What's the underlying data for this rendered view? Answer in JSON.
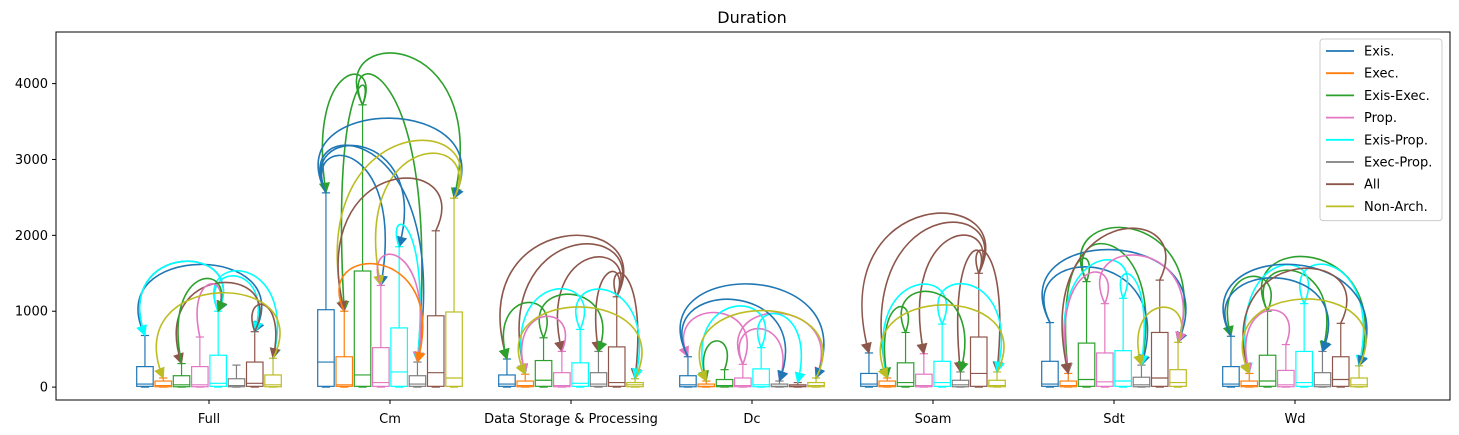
{
  "chart_data": {
    "type": "box",
    "title": "Duration",
    "xlabel": "",
    "ylabel": "",
    "ylim": [
      -170,
      4680
    ],
    "yticks": [
      0,
      1000,
      2000,
      3000,
      4000
    ],
    "grid": false,
    "legend_position": "top-right",
    "categories": [
      "Full",
      "Cm",
      "Data Storage & Processing",
      "Dc",
      "Soam",
      "Sdt",
      "Wd"
    ],
    "series": [
      {
        "name": "Exis.",
        "color": "#1f77b4",
        "boxes": [
          {
            "q1": 10,
            "median": 40,
            "q3": 270,
            "whisker_high": 680
          },
          {
            "q1": 10,
            "median": 330,
            "q3": 1020,
            "whisker_high": 2560
          },
          {
            "q1": 10,
            "median": 40,
            "q3": 160,
            "whisker_high": 370
          },
          {
            "q1": 5,
            "median": 30,
            "q3": 150,
            "whisker_high": 400
          },
          {
            "q1": 10,
            "median": 40,
            "q3": 180,
            "whisker_high": 450
          },
          {
            "q1": 10,
            "median": 40,
            "q3": 340,
            "whisker_high": 850
          },
          {
            "q1": 10,
            "median": 40,
            "q3": 270,
            "whisker_high": 670
          }
        ]
      },
      {
        "name": "Exec.",
        "color": "#ff7f0e",
        "boxes": [
          {
            "q1": 5,
            "median": 20,
            "q3": 80,
            "whisker_high": 120
          },
          {
            "q1": 10,
            "median": 30,
            "q3": 400,
            "whisker_high": 1000
          },
          {
            "q1": 5,
            "median": 20,
            "q3": 80,
            "whisker_high": 170
          },
          {
            "q1": 5,
            "median": 10,
            "q3": 40,
            "whisker_high": 80
          },
          {
            "q1": 5,
            "median": 20,
            "q3": 80,
            "whisker_high": 120
          },
          {
            "q1": 5,
            "median": 20,
            "q3": 80,
            "whisker_high": 180
          },
          {
            "q1": 5,
            "median": 20,
            "q3": 80,
            "whisker_high": 180
          }
        ]
      },
      {
        "name": "Exis-Exec.",
        "color": "#2ca02c",
        "boxes": [
          {
            "q1": 5,
            "median": 30,
            "q3": 150,
            "whisker_high": 310
          },
          {
            "q1": 10,
            "median": 160,
            "q3": 1530,
            "whisker_high": 3720
          },
          {
            "q1": 10,
            "median": 90,
            "q3": 350,
            "whisker_high": 650
          },
          {
            "q1": 5,
            "median": 20,
            "q3": 100,
            "whisker_high": 230
          },
          {
            "q1": 10,
            "median": 60,
            "q3": 320,
            "whisker_high": 720
          },
          {
            "q1": 10,
            "median": 100,
            "q3": 580,
            "whisker_high": 1390
          },
          {
            "q1": 10,
            "median": 80,
            "q3": 420,
            "whisker_high": 1000
          }
        ]
      },
      {
        "name": "Prop.",
        "color": "#e377c2",
        "boxes": [
          {
            "q1": 5,
            "median": 30,
            "q3": 270,
            "whisker_high": 660
          },
          {
            "q1": 10,
            "median": 60,
            "q3": 520,
            "whisker_high": 1340
          },
          {
            "q1": 5,
            "median": 20,
            "q3": 190,
            "whisker_high": 470
          },
          {
            "q1": 5,
            "median": 20,
            "q3": 120,
            "whisker_high": 300
          },
          {
            "q1": 5,
            "median": 20,
            "q3": 170,
            "whisker_high": 440
          },
          {
            "q1": 10,
            "median": 70,
            "q3": 450,
            "whisker_high": 1100
          },
          {
            "q1": 5,
            "median": 30,
            "q3": 220,
            "whisker_high": 560
          }
        ]
      },
      {
        "name": "Exis-Prop.",
        "color": "#00ffff",
        "boxes": [
          {
            "q1": 10,
            "median": 50,
            "q3": 420,
            "whisker_high": 1000
          },
          {
            "q1": 10,
            "median": 200,
            "q3": 780,
            "whisker_high": 1850
          },
          {
            "q1": 10,
            "median": 50,
            "q3": 320,
            "whisker_high": 760
          },
          {
            "q1": 5,
            "median": 30,
            "q3": 240,
            "whisker_high": 520
          },
          {
            "q1": 10,
            "median": 60,
            "q3": 340,
            "whisker_high": 830
          },
          {
            "q1": 10,
            "median": 80,
            "q3": 480,
            "whisker_high": 1170
          },
          {
            "q1": 10,
            "median": 60,
            "q3": 470,
            "whisker_high": 1100
          }
        ]
      },
      {
        "name": "Exec-Prop.",
        "color": "#7f7f7f",
        "boxes": [
          {
            "q1": 5,
            "median": 20,
            "q3": 110,
            "whisker_high": 290
          },
          {
            "q1": 10,
            "median": 40,
            "q3": 150,
            "whisker_high": 330
          },
          {
            "q1": 10,
            "median": 40,
            "q3": 190,
            "whisker_high": 470
          },
          {
            "q1": 5,
            "median": 10,
            "q3": 40,
            "whisker_high": 80
          },
          {
            "q1": 5,
            "median": 30,
            "q3": 90,
            "whisker_high": 200
          },
          {
            "q1": 5,
            "median": 30,
            "q3": 130,
            "whisker_high": 290
          },
          {
            "q1": 5,
            "median": 30,
            "q3": 190,
            "whisker_high": 470
          }
        ]
      },
      {
        "name": "All",
        "color": "#8c564b",
        "boxes": [
          {
            "q1": 10,
            "median": 50,
            "q3": 330,
            "whisker_high": 730
          },
          {
            "q1": 10,
            "median": 190,
            "q3": 940,
            "whisker_high": 2060
          },
          {
            "q1": 10,
            "median": 60,
            "q3": 530,
            "whisker_high": 1190
          },
          {
            "q1": 5,
            "median": 10,
            "q3": 30,
            "whisker_high": 60
          },
          {
            "q1": 10,
            "median": 180,
            "q3": 660,
            "whisker_high": 1500
          },
          {
            "q1": 10,
            "median": 120,
            "q3": 720,
            "whisker_high": 1410
          },
          {
            "q1": 10,
            "median": 100,
            "q3": 400,
            "whisker_high": 840
          }
        ]
      },
      {
        "name": "Non-Arch.",
        "color": "#bcbd22",
        "boxes": [
          {
            "q1": 5,
            "median": 30,
            "q3": 160,
            "whisker_high": 380
          },
          {
            "q1": 10,
            "median": 120,
            "q3": 990,
            "whisker_high": 2490
          },
          {
            "q1": 5,
            "median": 30,
            "q3": 60,
            "whisker_high": 110
          },
          {
            "q1": 5,
            "median": 20,
            "q3": 60,
            "whisker_high": 120
          },
          {
            "q1": 5,
            "median": 20,
            "q3": 90,
            "whisker_high": 200
          },
          {
            "q1": 10,
            "median": 60,
            "q3": 230,
            "whisker_high": 590
          },
          {
            "q1": 5,
            "median": 30,
            "q3": 120,
            "whisker_high": 280
          }
        ]
      }
    ],
    "arcs": [
      {
        "category": "Full",
        "from": "Exis.",
        "to": "Exis-Prop.",
        "color": "#1f77b4"
      },
      {
        "category": "Full",
        "from": "Exis.",
        "to": "All",
        "color": "#1f77b4"
      },
      {
        "category": "Full",
        "from": "Exis-Prop.",
        "to": "Exis.",
        "color": "#00ffff"
      },
      {
        "category": "Full",
        "from": "Exis-Prop.",
        "to": "All",
        "color": "#00ffff"
      },
      {
        "category": "Full",
        "from": "Exis-Prop.",
        "to": "Non-Arch.",
        "color": "#00ffff"
      },
      {
        "category": "Full",
        "from": "All",
        "to": "Exis-Exec.",
        "color": "#8c564b"
      },
      {
        "category": "Full",
        "from": "All",
        "to": "Non-Arch.",
        "color": "#8c564b"
      },
      {
        "category": "Full",
        "from": "Prop.",
        "to": "Exis-Prop.",
        "color": "#e377c2"
      },
      {
        "category": "Full",
        "from": "Exis-Exec.",
        "to": "Exis-Prop.",
        "color": "#2ca02c"
      },
      {
        "category": "Full",
        "from": "Non-Arch.",
        "to": "Exec.",
        "color": "#bcbd22"
      },
      {
        "category": "Cm",
        "from": "Exis-Exec.",
        "to": "Exis.",
        "color": "#2ca02c"
      },
      {
        "category": "Cm",
        "from": "Exis-Exec.",
        "to": "Non-Arch.",
        "color": "#2ca02c"
      },
      {
        "category": "Cm",
        "from": "Exis-Exec.",
        "to": "Exec-Prop.",
        "color": "#2ca02c"
      },
      {
        "category": "Cm",
        "from": "Exis-Exec.",
        "to": "Exec.",
        "color": "#2ca02c"
      },
      {
        "category": "Cm",
        "from": "Exis.",
        "to": "Non-Arch.",
        "color": "#1f77b4"
      },
      {
        "category": "Cm",
        "from": "Exis.",
        "to": "Exec-Prop.",
        "color": "#1f77b4"
      },
      {
        "category": "Cm",
        "from": "Exis.",
        "to": "Exis-Prop.",
        "color": "#1f77b4"
      },
      {
        "category": "Cm",
        "from": "Exis.",
        "to": "Prop.",
        "color": "#1f77b4"
      },
      {
        "category": "Cm",
        "from": "Non-Arch.",
        "to": "Exec.",
        "color": "#bcbd22"
      },
      {
        "category": "Cm",
        "from": "Non-Arch.",
        "to": "Prop.",
        "color": "#bcbd22"
      },
      {
        "category": "Cm",
        "from": "All",
        "to": "Exec.",
        "color": "#8c564b"
      },
      {
        "category": "Cm",
        "from": "Exis-Prop.",
        "to": "Exec-Prop.",
        "color": "#00ffff"
      },
      {
        "category": "Cm",
        "from": "Prop.",
        "to": "Exec-Prop.",
        "color": "#e377c2"
      },
      {
        "category": "Cm",
        "from": "Exec.",
        "to": "Exec-Prop.",
        "color": "#ff7f0e"
      },
      {
        "category": "Data Storage & Processing",
        "from": "All",
        "to": "Exis.",
        "color": "#8c564b"
      },
      {
        "category": "Data Storage & Processing",
        "from": "All",
        "to": "Exec.",
        "color": "#8c564b"
      },
      {
        "category": "Data Storage & Processing",
        "from": "All",
        "to": "Prop.",
        "color": "#8c564b"
      },
      {
        "category": "Data Storage & Processing",
        "from": "All",
        "to": "Exec-Prop.",
        "color": "#8c564b"
      },
      {
        "category": "Data Storage & Processing",
        "from": "All",
        "to": "Non-Arch.",
        "color": "#8c564b"
      },
      {
        "category": "Data Storage & Processing",
        "from": "Exis-Exec.",
        "to": "Exis.",
        "color": "#2ca02c"
      },
      {
        "category": "Data Storage & Processing",
        "from": "Exis-Exec.",
        "to": "Exec-Prop.",
        "color": "#2ca02c"
      },
      {
        "category": "Data Storage & Processing",
        "from": "Exis-Prop.",
        "to": "Exec.",
        "color": "#00ffff"
      },
      {
        "category": "Data Storage & Processing",
        "from": "Exis-Prop.",
        "to": "Non-Arch.",
        "color": "#00ffff"
      },
      {
        "category": "Data Storage & Processing",
        "from": "Prop.",
        "to": "Exec.",
        "color": "#e377c2"
      },
      {
        "category": "Data Storage & Processing",
        "from": "Non-Arch.",
        "to": "Exec.",
        "color": "#bcbd22"
      },
      {
        "category": "Dc",
        "from": "Prop.",
        "to": "Exis.",
        "color": "#e377c2"
      },
      {
        "category": "Dc",
        "from": "Prop.",
        "to": "Exec-Prop.",
        "color": "#e377c2"
      },
      {
        "category": "Dc",
        "from": "Prop.",
        "to": "Non-Arch.",
        "color": "#e377c2"
      },
      {
        "category": "Dc",
        "from": "Exis-Prop.",
        "to": "Exec.",
        "color": "#00ffff"
      },
      {
        "category": "Dc",
        "from": "Exis-Prop.",
        "to": "All",
        "color": "#00ffff"
      },
      {
        "category": "Dc",
        "from": "Exis.",
        "to": "Exec-Prop.",
        "color": "#1f77b4"
      },
      {
        "category": "Dc",
        "from": "Exis.",
        "to": "Non-Arch.",
        "color": "#1f77b4"
      },
      {
        "category": "Dc",
        "from": "Exis-Exec.",
        "to": "Exec.",
        "color": "#2ca02c"
      },
      {
        "category": "Dc",
        "from": "Non-Arch.",
        "to": "Exec.",
        "color": "#bcbd22"
      },
      {
        "category": "Soam",
        "from": "All",
        "to": "Exis.",
        "color": "#8c564b"
      },
      {
        "category": "Soam",
        "from": "All",
        "to": "Exec.",
        "color": "#8c564b"
      },
      {
        "category": "Soam",
        "from": "All",
        "to": "Prop.",
        "color": "#8c564b"
      },
      {
        "category": "Soam",
        "from": "All",
        "to": "Exec-Prop.",
        "color": "#8c564b"
      },
      {
        "category": "Soam",
        "from": "All",
        "to": "Non-Arch.",
        "color": "#8c564b"
      },
      {
        "category": "Soam",
        "from": "Exis-Prop.",
        "to": "Exec.",
        "color": "#00ffff"
      },
      {
        "category": "Soam",
        "from": "Exis-Prop.",
        "to": "Non-Arch.",
        "color": "#00ffff"
      },
      {
        "category": "Soam",
        "from": "Exis-Exec.",
        "to": "Exec.",
        "color": "#2ca02c"
      },
      {
        "category": "Soam",
        "from": "Exis-Exec.",
        "to": "Exec-Prop.",
        "color": "#2ca02c"
      },
      {
        "category": "Soam",
        "from": "Non-Arch.",
        "to": "Exec.",
        "color": "#bcbd22"
      },
      {
        "category": "Sdt",
        "from": "Exis-Exec.",
        "to": "Exec.",
        "color": "#2ca02c"
      },
      {
        "category": "Sdt",
        "from": "Exis-Exec.",
        "to": "Non-Arch.",
        "color": "#2ca02c"
      },
      {
        "category": "Sdt",
        "from": "Exis-Exec.",
        "to": "Exec-Prop.",
        "color": "#2ca02c"
      },
      {
        "category": "Sdt",
        "from": "Exis.",
        "to": "Exec-Prop.",
        "color": "#1f77b4"
      },
      {
        "category": "Sdt",
        "from": "Exis.",
        "to": "Non-Arch.",
        "color": "#1f77b4"
      },
      {
        "category": "Sdt",
        "from": "Exis-Prop.",
        "to": "Exec.",
        "color": "#00ffff"
      },
      {
        "category": "Sdt",
        "from": "Exis-Prop.",
        "to": "Exec-Prop.",
        "color": "#00ffff"
      },
      {
        "category": "Sdt",
        "from": "Prop.",
        "to": "Exec.",
        "color": "#e377c2"
      },
      {
        "category": "Sdt",
        "from": "Prop.",
        "to": "Non-Arch.",
        "color": "#e377c2"
      },
      {
        "category": "Sdt",
        "from": "All",
        "to": "Exec.",
        "color": "#8c564b"
      },
      {
        "category": "Sdt",
        "from": "Non-Arch.",
        "to": "Exec-Prop.",
        "color": "#bcbd22"
      },
      {
        "category": "Wd",
        "from": "Exis-Exec.",
        "to": "Exis.",
        "color": "#2ca02c"
      },
      {
        "category": "Wd",
        "from": "Exis-Exec.",
        "to": "Exec-Prop.",
        "color": "#2ca02c"
      },
      {
        "category": "Wd",
        "from": "Exis-Exec.",
        "to": "Non-Arch.",
        "color": "#2ca02c"
      },
      {
        "category": "Wd",
        "from": "Exis-Prop.",
        "to": "Exec.",
        "color": "#00ffff"
      },
      {
        "category": "Wd",
        "from": "Exis-Prop.",
        "to": "Non-Arch.",
        "color": "#00ffff"
      },
      {
        "category": "Wd",
        "from": "Exis.",
        "to": "Exec-Prop.",
        "color": "#1f77b4"
      },
      {
        "category": "Wd",
        "from": "Exis.",
        "to": "Non-Arch.",
        "color": "#1f77b4"
      },
      {
        "category": "Wd",
        "from": "All",
        "to": "Exec.",
        "color": "#8c564b"
      },
      {
        "category": "Wd",
        "from": "Prop.",
        "to": "Exec.",
        "color": "#e377c2"
      },
      {
        "category": "Wd",
        "from": "Non-Arch.",
        "to": "Exec.",
        "color": "#bcbd22"
      }
    ]
  }
}
